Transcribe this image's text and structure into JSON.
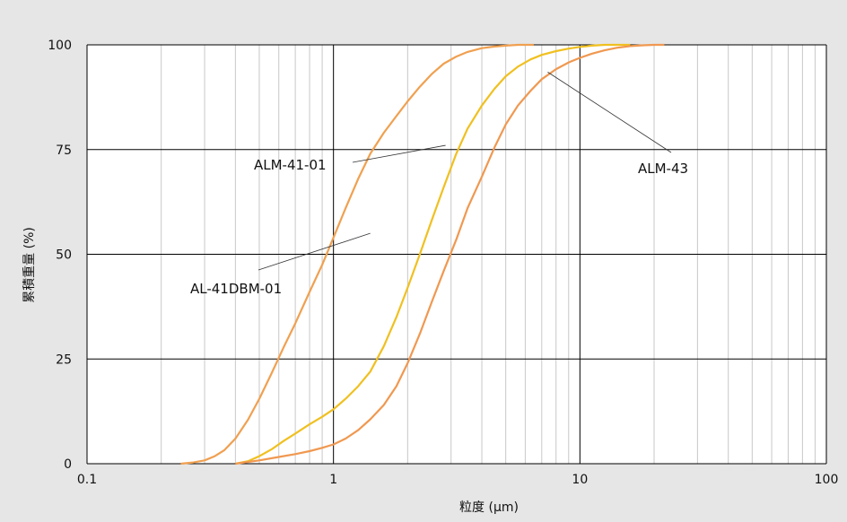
{
  "chart_data": {
    "type": "line",
    "xlabel": "粒度 (μm)",
    "ylabel": "累積重量 (%)",
    "x_scale": "log",
    "xlim": [
      0.1,
      100
    ],
    "ylim": [
      0,
      100
    ],
    "x_ticks": [
      0.1,
      1,
      10,
      100
    ],
    "x_tick_labels": [
      "0.1",
      "1",
      "10",
      "100"
    ],
    "y_ticks": [
      0,
      25,
      50,
      75,
      100
    ],
    "y_tick_labels": [
      "0",
      "25",
      "50",
      "75",
      "100"
    ],
    "grid": {
      "major": true,
      "minor_x": true
    },
    "colors": {
      "plot_bg": "#ffffff",
      "page_bg": "#e6e6e6",
      "major_grid": "#000000",
      "minor_grid": "#c8c8c8"
    },
    "series": [
      {
        "name": "AL-41DBM-01",
        "color": "#f0a050",
        "x": [
          0.24,
          0.27,
          0.3,
          0.33,
          0.36,
          0.4,
          0.45,
          0.5,
          0.56,
          0.63,
          0.7,
          0.8,
          0.9,
          1.0,
          1.12,
          1.26,
          1.41,
          1.6,
          1.8,
          2.0,
          2.24,
          2.5,
          2.8,
          3.15,
          3.5,
          4.0,
          4.5,
          5.0,
          5.6,
          6.5
        ],
        "y": [
          0,
          0.3,
          0.8,
          1.8,
          3.2,
          6.0,
          10.5,
          15.5,
          21.5,
          28.0,
          33.5,
          41.0,
          47.5,
          54.0,
          61.0,
          68.0,
          74.0,
          79.0,
          83.0,
          86.5,
          90.0,
          93.0,
          95.5,
          97.2,
          98.3,
          99.2,
          99.6,
          99.8,
          100,
          100
        ]
      },
      {
        "name": "ALM-41-01",
        "color": "#f0c020",
        "x": [
          0.4,
          0.45,
          0.5,
          0.56,
          0.63,
          0.7,
          0.8,
          0.9,
          1.0,
          1.12,
          1.26,
          1.41,
          1.6,
          1.8,
          2.0,
          2.24,
          2.5,
          2.8,
          3.15,
          3.5,
          4.0,
          4.5,
          5.0,
          5.6,
          6.3,
          7.0,
          8.0,
          9.0,
          10.0,
          11.2,
          12.6,
          14.1,
          16.0
        ],
        "y": [
          0,
          0.6,
          1.8,
          3.4,
          5.5,
          7.2,
          9.4,
          11.2,
          13.0,
          15.5,
          18.5,
          22.0,
          28.0,
          35.0,
          42.0,
          50.0,
          58.0,
          66.0,
          74.0,
          80.0,
          85.5,
          89.5,
          92.5,
          94.8,
          96.5,
          97.6,
          98.5,
          99.1,
          99.5,
          99.8,
          100,
          100,
          100
        ]
      },
      {
        "name": "ALM-43",
        "color": "#f09850",
        "x": [
          0.4,
          0.5,
          0.6,
          0.7,
          0.8,
          0.9,
          1.0,
          1.12,
          1.26,
          1.41,
          1.6,
          1.8,
          2.0,
          2.24,
          2.5,
          2.8,
          3.15,
          3.5,
          4.0,
          4.5,
          5.0,
          5.6,
          6.3,
          7.0,
          8.0,
          9.0,
          10.0,
          11.2,
          12.6,
          14.1,
          16.0,
          18.0,
          20.0,
          22.0
        ],
        "y": [
          0,
          0.8,
          1.6,
          2.3,
          3.0,
          3.8,
          4.6,
          6.0,
          8.0,
          10.6,
          14.0,
          18.5,
          24.0,
          31.0,
          38.5,
          46.0,
          53.5,
          61.0,
          68.5,
          75.5,
          81.0,
          85.5,
          89.0,
          91.8,
          94.2,
          95.8,
          96.9,
          97.9,
          98.7,
          99.3,
          99.7,
          99.9,
          100,
          100
        ]
      }
    ],
    "annotations": [
      {
        "label": "ALM-41-01",
        "series": "ALM-41-01"
      },
      {
        "label": "AL-41DBM-01",
        "series": "AL-41DBM-01"
      },
      {
        "label": "ALM-43",
        "series": "ALM-43"
      }
    ]
  }
}
